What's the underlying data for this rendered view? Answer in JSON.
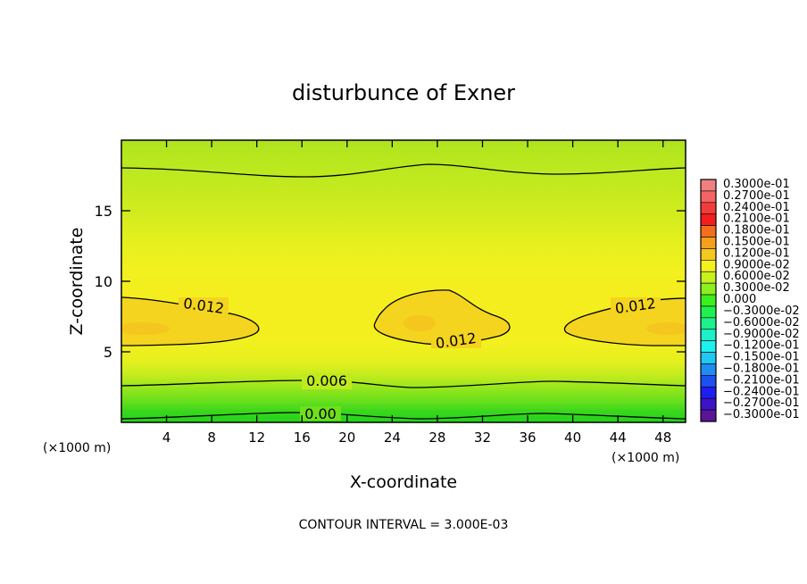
{
  "chart_data": {
    "type": "heatmap",
    "title": "disturbunce of Exner",
    "xlabel": "X-coordinate",
    "ylabel": "Z-coordinate",
    "x_unit_left": "(×1000 m)",
    "x_unit_right": "(×1000 m)",
    "footer": "CONTOUR INTERVAL = 3.000E-03",
    "xlim": [
      0,
      50
    ],
    "ylim": [
      0,
      20
    ],
    "x_ticks": [
      4,
      8,
      12,
      16,
      20,
      24,
      28,
      32,
      36,
      40,
      44,
      48
    ],
    "y_ticks": [
      5,
      10,
      15
    ],
    "contour_labels": [
      {
        "text": "0.012",
        "x": 7.0,
        "z": 8.1
      },
      {
        "text": "0.012",
        "x": 29.5,
        "z": 5.9
      },
      {
        "text": "0.012",
        "x": 45.5,
        "z": 8.0
      },
      {
        "text": "0.006",
        "x": 18.5,
        "z": 2.8
      },
      {
        "text": "0.00",
        "x": 17.5,
        "z": 0.5
      }
    ],
    "grid": false,
    "legend_position": "right",
    "colorbar": [
      {
        "label": "0.3000e-01",
        "color": "#f08080"
      },
      {
        "label": "0.2700e-01",
        "color": "#f46464"
      },
      {
        "label": "0.2400e-01",
        "color": "#f43c3c"
      },
      {
        "label": "0.2100e-01",
        "color": "#f41e1e"
      },
      {
        "label": "0.1800e-01",
        "color": "#f46e1e"
      },
      {
        "label": "0.1500e-01",
        "color": "#f4a01e"
      },
      {
        "label": "0.1200e-01",
        "color": "#f4c81e"
      },
      {
        "label": "0.9000e-02",
        "color": "#f4f01e"
      },
      {
        "label": "0.6000e-02",
        "color": "#c8f01e"
      },
      {
        "label": "0.3000e-02",
        "color": "#8cf01e"
      },
      {
        "label": "0.000",
        "color": "#3cf01e"
      },
      {
        "label": "−0.3000e-02",
        "color": "#1ef050"
      },
      {
        "label": "−0.6000e-02",
        "color": "#1ef08c"
      },
      {
        "label": "−0.9000e-02",
        "color": "#1ef0c8"
      },
      {
        "label": "−0.1200e-01",
        "color": "#1ef0f0"
      },
      {
        "label": "−0.1500e-01",
        "color": "#1ec8f0"
      },
      {
        "label": "−0.1800e-01",
        "color": "#1e8cf0"
      },
      {
        "label": "−0.2100e-01",
        "color": "#1e50f0"
      },
      {
        "label": "−0.2400e-01",
        "color": "#1e1ef0"
      },
      {
        "label": "−0.2700e-01",
        "color": "#3c14c8"
      },
      {
        "label": "−0.3000e-01",
        "color": "#5a1496"
      }
    ]
  }
}
